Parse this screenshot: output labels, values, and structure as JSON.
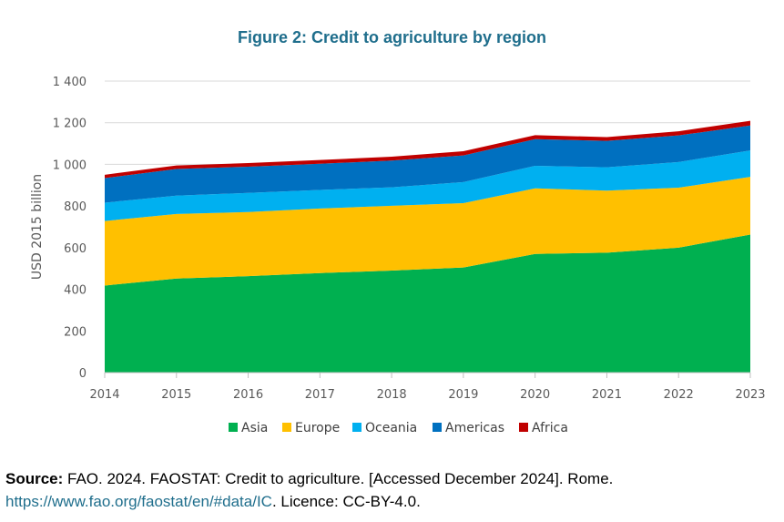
{
  "chart_data": {
    "type": "area",
    "stacked": true,
    "title": "Figure 2: Credit to agriculture by region",
    "xlabel": "",
    "ylabel": "USD 2015 billion",
    "x": [
      2014,
      2015,
      2016,
      2017,
      2018,
      2019,
      2020,
      2021,
      2022,
      2023
    ],
    "ylim": [
      0,
      1400
    ],
    "yticks": [
      0,
      200,
      400,
      600,
      800,
      1000,
      1200,
      1400
    ],
    "ytick_labels": [
      "0",
      "200",
      "400",
      "600",
      "800",
      "1 000",
      "1 200",
      "1 400"
    ],
    "grid": true,
    "legend_position": "bottom",
    "series": [
      {
        "name": "Asia",
        "color": "#00b050",
        "values": [
          418,
          452,
          463,
          478,
          490,
          505,
          570,
          576,
          600,
          663
        ]
      },
      {
        "name": "Europe",
        "color": "#ffc000",
        "values": [
          310,
          310,
          308,
          310,
          311,
          309,
          315,
          298,
          288,
          277
        ]
      },
      {
        "name": "Oceania",
        "color": "#00b0f0",
        "values": [
          88,
          88,
          92,
          89,
          89,
          101,
          108,
          112,
          123,
          127
        ]
      },
      {
        "name": "Americas",
        "color": "#0070c0",
        "values": [
          118,
          128,
          126,
          126,
          128,
          128,
          128,
          127,
          128,
          120
        ]
      },
      {
        "name": "Africa",
        "color": "#c00000",
        "values": [
          16,
          17,
          17,
          18,
          19,
          20,
          19,
          18,
          20,
          22
        ]
      }
    ]
  },
  "source": {
    "label": "Source:",
    "text": " FAO. 2024. FAOSTAT: Credit to agriculture. [Accessed December 2024]. Rome.",
    "url": "https://www.fao.org/faostat/en/#data/IC",
    "licence": ". Licence: CC-BY-4.0."
  }
}
